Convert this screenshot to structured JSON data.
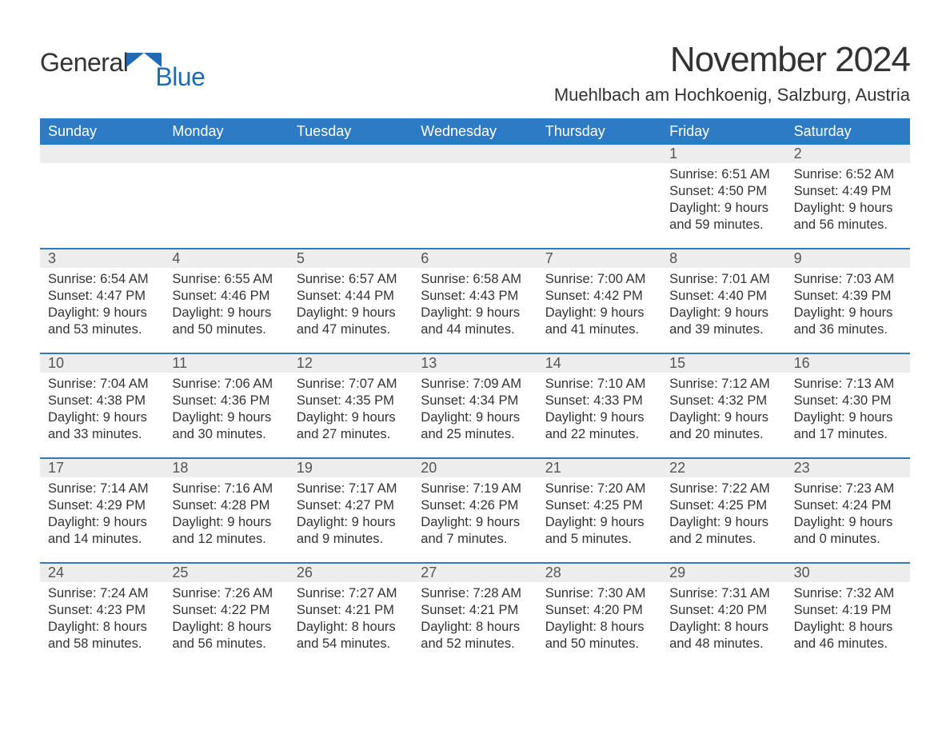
{
  "brand": {
    "word1": "General",
    "word2": "Blue"
  },
  "title": "November 2024",
  "location": "Muehlbach am Hochkoenig, Salzburg, Austria",
  "colors": {
    "header_bg": "#2d7bc4",
    "header_text": "#ffffff",
    "daynum_bg": "#ededed",
    "week_border": "#2d7bc4",
    "body_text": "#333333",
    "logo_blue": "#1f6bb7"
  },
  "day_headers": [
    "Sunday",
    "Monday",
    "Tuesday",
    "Wednesday",
    "Thursday",
    "Friday",
    "Saturday"
  ],
  "weeks": [
    [
      {
        "num": "",
        "sunrise": "",
        "sunset": "",
        "daylight1": "",
        "daylight2": ""
      },
      {
        "num": "",
        "sunrise": "",
        "sunset": "",
        "daylight1": "",
        "daylight2": ""
      },
      {
        "num": "",
        "sunrise": "",
        "sunset": "",
        "daylight1": "",
        "daylight2": ""
      },
      {
        "num": "",
        "sunrise": "",
        "sunset": "",
        "daylight1": "",
        "daylight2": ""
      },
      {
        "num": "",
        "sunrise": "",
        "sunset": "",
        "daylight1": "",
        "daylight2": ""
      },
      {
        "num": "1",
        "sunrise": "Sunrise: 6:51 AM",
        "sunset": "Sunset: 4:50 PM",
        "daylight1": "Daylight: 9 hours",
        "daylight2": "and 59 minutes."
      },
      {
        "num": "2",
        "sunrise": "Sunrise: 6:52 AM",
        "sunset": "Sunset: 4:49 PM",
        "daylight1": "Daylight: 9 hours",
        "daylight2": "and 56 minutes."
      }
    ],
    [
      {
        "num": "3",
        "sunrise": "Sunrise: 6:54 AM",
        "sunset": "Sunset: 4:47 PM",
        "daylight1": "Daylight: 9 hours",
        "daylight2": "and 53 minutes."
      },
      {
        "num": "4",
        "sunrise": "Sunrise: 6:55 AM",
        "sunset": "Sunset: 4:46 PM",
        "daylight1": "Daylight: 9 hours",
        "daylight2": "and 50 minutes."
      },
      {
        "num": "5",
        "sunrise": "Sunrise: 6:57 AM",
        "sunset": "Sunset: 4:44 PM",
        "daylight1": "Daylight: 9 hours",
        "daylight2": "and 47 minutes."
      },
      {
        "num": "6",
        "sunrise": "Sunrise: 6:58 AM",
        "sunset": "Sunset: 4:43 PM",
        "daylight1": "Daylight: 9 hours",
        "daylight2": "and 44 minutes."
      },
      {
        "num": "7",
        "sunrise": "Sunrise: 7:00 AM",
        "sunset": "Sunset: 4:42 PM",
        "daylight1": "Daylight: 9 hours",
        "daylight2": "and 41 minutes."
      },
      {
        "num": "8",
        "sunrise": "Sunrise: 7:01 AM",
        "sunset": "Sunset: 4:40 PM",
        "daylight1": "Daylight: 9 hours",
        "daylight2": "and 39 minutes."
      },
      {
        "num": "9",
        "sunrise": "Sunrise: 7:03 AM",
        "sunset": "Sunset: 4:39 PM",
        "daylight1": "Daylight: 9 hours",
        "daylight2": "and 36 minutes."
      }
    ],
    [
      {
        "num": "10",
        "sunrise": "Sunrise: 7:04 AM",
        "sunset": "Sunset: 4:38 PM",
        "daylight1": "Daylight: 9 hours",
        "daylight2": "and 33 minutes."
      },
      {
        "num": "11",
        "sunrise": "Sunrise: 7:06 AM",
        "sunset": "Sunset: 4:36 PM",
        "daylight1": "Daylight: 9 hours",
        "daylight2": "and 30 minutes."
      },
      {
        "num": "12",
        "sunrise": "Sunrise: 7:07 AM",
        "sunset": "Sunset: 4:35 PM",
        "daylight1": "Daylight: 9 hours",
        "daylight2": "and 27 minutes."
      },
      {
        "num": "13",
        "sunrise": "Sunrise: 7:09 AM",
        "sunset": "Sunset: 4:34 PM",
        "daylight1": "Daylight: 9 hours",
        "daylight2": "and 25 minutes."
      },
      {
        "num": "14",
        "sunrise": "Sunrise: 7:10 AM",
        "sunset": "Sunset: 4:33 PM",
        "daylight1": "Daylight: 9 hours",
        "daylight2": "and 22 minutes."
      },
      {
        "num": "15",
        "sunrise": "Sunrise: 7:12 AM",
        "sunset": "Sunset: 4:32 PM",
        "daylight1": "Daylight: 9 hours",
        "daylight2": "and 20 minutes."
      },
      {
        "num": "16",
        "sunrise": "Sunrise: 7:13 AM",
        "sunset": "Sunset: 4:30 PM",
        "daylight1": "Daylight: 9 hours",
        "daylight2": "and 17 minutes."
      }
    ],
    [
      {
        "num": "17",
        "sunrise": "Sunrise: 7:14 AM",
        "sunset": "Sunset: 4:29 PM",
        "daylight1": "Daylight: 9 hours",
        "daylight2": "and 14 minutes."
      },
      {
        "num": "18",
        "sunrise": "Sunrise: 7:16 AM",
        "sunset": "Sunset: 4:28 PM",
        "daylight1": "Daylight: 9 hours",
        "daylight2": "and 12 minutes."
      },
      {
        "num": "19",
        "sunrise": "Sunrise: 7:17 AM",
        "sunset": "Sunset: 4:27 PM",
        "daylight1": "Daylight: 9 hours",
        "daylight2": "and 9 minutes."
      },
      {
        "num": "20",
        "sunrise": "Sunrise: 7:19 AM",
        "sunset": "Sunset: 4:26 PM",
        "daylight1": "Daylight: 9 hours",
        "daylight2": "and 7 minutes."
      },
      {
        "num": "21",
        "sunrise": "Sunrise: 7:20 AM",
        "sunset": "Sunset: 4:25 PM",
        "daylight1": "Daylight: 9 hours",
        "daylight2": "and 5 minutes."
      },
      {
        "num": "22",
        "sunrise": "Sunrise: 7:22 AM",
        "sunset": "Sunset: 4:25 PM",
        "daylight1": "Daylight: 9 hours",
        "daylight2": "and 2 minutes."
      },
      {
        "num": "23",
        "sunrise": "Sunrise: 7:23 AM",
        "sunset": "Sunset: 4:24 PM",
        "daylight1": "Daylight: 9 hours",
        "daylight2": "and 0 minutes."
      }
    ],
    [
      {
        "num": "24",
        "sunrise": "Sunrise: 7:24 AM",
        "sunset": "Sunset: 4:23 PM",
        "daylight1": "Daylight: 8 hours",
        "daylight2": "and 58 minutes."
      },
      {
        "num": "25",
        "sunrise": "Sunrise: 7:26 AM",
        "sunset": "Sunset: 4:22 PM",
        "daylight1": "Daylight: 8 hours",
        "daylight2": "and 56 minutes."
      },
      {
        "num": "26",
        "sunrise": "Sunrise: 7:27 AM",
        "sunset": "Sunset: 4:21 PM",
        "daylight1": "Daylight: 8 hours",
        "daylight2": "and 54 minutes."
      },
      {
        "num": "27",
        "sunrise": "Sunrise: 7:28 AM",
        "sunset": "Sunset: 4:21 PM",
        "daylight1": "Daylight: 8 hours",
        "daylight2": "and 52 minutes."
      },
      {
        "num": "28",
        "sunrise": "Sunrise: 7:30 AM",
        "sunset": "Sunset: 4:20 PM",
        "daylight1": "Daylight: 8 hours",
        "daylight2": "and 50 minutes."
      },
      {
        "num": "29",
        "sunrise": "Sunrise: 7:31 AM",
        "sunset": "Sunset: 4:20 PM",
        "daylight1": "Daylight: 8 hours",
        "daylight2": "and 48 minutes."
      },
      {
        "num": "30",
        "sunrise": "Sunrise: 7:32 AM",
        "sunset": "Sunset: 4:19 PM",
        "daylight1": "Daylight: 8 hours",
        "daylight2": "and 46 minutes."
      }
    ]
  ]
}
